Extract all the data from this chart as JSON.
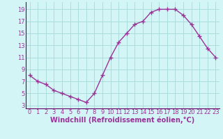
{
  "x": [
    0,
    1,
    2,
    3,
    4,
    5,
    6,
    7,
    8,
    9,
    10,
    11,
    12,
    13,
    14,
    15,
    16,
    17,
    18,
    19,
    20,
    21,
    22,
    23
  ],
  "y": [
    8.0,
    7.0,
    6.5,
    5.5,
    5.0,
    4.5,
    4.0,
    3.5,
    5.0,
    8.0,
    11.0,
    13.5,
    15.0,
    16.5,
    17.0,
    18.5,
    19.0,
    19.0,
    19.0,
    18.0,
    16.5,
    14.5,
    12.5,
    11.0
  ],
  "line_color": "#993399",
  "marker": "+",
  "bg_color": "#d4f5f5",
  "grid_color": "#aadddd",
  "xlabel": "Windchill (Refroidissement éolien,°C)",
  "xlabel_color": "#993399",
  "ylabel_ticks": [
    3,
    5,
    7,
    9,
    11,
    13,
    15,
    17,
    19
  ],
  "xtick_labels": [
    "0",
    "1",
    "2",
    "3",
    "4",
    "5",
    "6",
    "7",
    "8",
    "9",
    "10",
    "11",
    "12",
    "13",
    "14",
    "15",
    "16",
    "17",
    "18",
    "19",
    "20",
    "21",
    "22",
    "23"
  ],
  "ylim": [
    2.5,
    20.2
  ],
  "xlim": [
    -0.5,
    23.5
  ],
  "tick_color": "#993399",
  "axis_color": "#660066",
  "font_color": "#993399",
  "font_size": 6.0,
  "xlabel_fontsize": 7.0,
  "line_width": 1.0,
  "marker_size": 4
}
